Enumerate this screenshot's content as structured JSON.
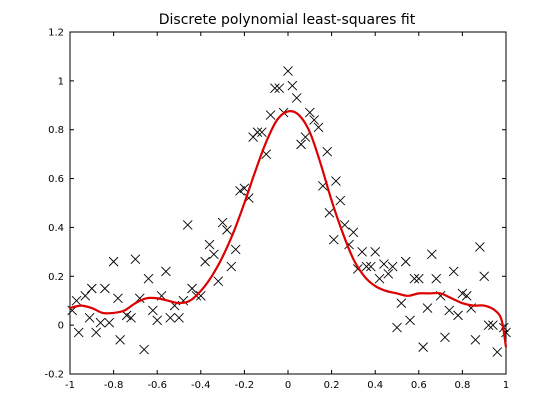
{
  "chart_data": {
    "type": "scatter",
    "title": "Discrete polynomial least-squares fit",
    "xlabel": "",
    "ylabel": "",
    "xlim": [
      -1,
      1
    ],
    "ylim": [
      -0.2,
      1.2
    ],
    "x_ticks": [
      -1,
      -0.8,
      -0.6,
      -0.4,
      -0.2,
      0,
      0.2,
      0.4,
      0.6,
      0.8,
      1
    ],
    "x_tick_labels": [
      "-1",
      "-0.8",
      "-0.6",
      "-0.4",
      "-0.2",
      "0",
      "0.2",
      "0.4",
      "0.6",
      "0.8",
      "1"
    ],
    "y_ticks": [
      -0.2,
      0,
      0.2,
      0.4,
      0.6,
      0.8,
      1,
      1.2
    ],
    "y_tick_labels": [
      "-0.2",
      "0",
      "0.2",
      "0.4",
      "0.6",
      "0.8",
      "1",
      "1.2"
    ],
    "grid": false,
    "legend": "none",
    "series": [
      {
        "kind": "scatter",
        "marker": "x",
        "color": "#000000",
        "points": [
          [
            -0.99,
            0.06
          ],
          [
            -0.97,
            0.1
          ],
          [
            -0.96,
            -0.03
          ],
          [
            -0.93,
            0.12
          ],
          [
            -0.91,
            0.03
          ],
          [
            -0.9,
            0.15
          ],
          [
            -0.88,
            -0.03
          ],
          [
            -0.86,
            0.01
          ],
          [
            -0.84,
            0.15
          ],
          [
            -0.82,
            0.01
          ],
          [
            -0.8,
            0.26
          ],
          [
            -0.78,
            0.11
          ],
          [
            -0.77,
            -0.06
          ],
          [
            -0.74,
            0.04
          ],
          [
            -0.72,
            0.03
          ],
          [
            -0.7,
            0.27
          ],
          [
            -0.68,
            0.11
          ],
          [
            -0.66,
            -0.1
          ],
          [
            -0.64,
            0.19
          ],
          [
            -0.62,
            0.06
          ],
          [
            -0.6,
            0.02
          ],
          [
            -0.58,
            0.12
          ],
          [
            -0.56,
            0.22
          ],
          [
            -0.54,
            0.03
          ],
          [
            -0.52,
            0.08
          ],
          [
            -0.5,
            0.03
          ],
          [
            -0.48,
            0.1
          ],
          [
            -0.46,
            0.41
          ],
          [
            -0.44,
            0.15
          ],
          [
            -0.42,
            0.12
          ],
          [
            -0.4,
            0.12
          ],
          [
            -0.38,
            0.26
          ],
          [
            -0.36,
            0.33
          ],
          [
            -0.34,
            0.29
          ],
          [
            -0.32,
            0.18
          ],
          [
            -0.3,
            0.42
          ],
          [
            -0.28,
            0.39
          ],
          [
            -0.26,
            0.24
          ],
          [
            -0.24,
            0.31
          ],
          [
            -0.22,
            0.55
          ],
          [
            -0.2,
            0.56
          ],
          [
            -0.18,
            0.52
          ],
          [
            -0.16,
            0.77
          ],
          [
            -0.14,
            0.79
          ],
          [
            -0.12,
            0.79
          ],
          [
            -0.1,
            0.7
          ],
          [
            -0.08,
            0.86
          ],
          [
            -0.06,
            0.97
          ],
          [
            -0.04,
            0.97
          ],
          [
            -0.02,
            0.87
          ],
          [
            0.0,
            1.04
          ],
          [
            0.02,
            0.98
          ],
          [
            0.04,
            0.93
          ],
          [
            0.06,
            0.74
          ],
          [
            0.08,
            0.77
          ],
          [
            0.1,
            0.87
          ],
          [
            0.12,
            0.84
          ],
          [
            0.14,
            0.81
          ],
          [
            0.16,
            0.57
          ],
          [
            0.18,
            0.71
          ],
          [
            0.19,
            0.46
          ],
          [
            0.21,
            0.35
          ],
          [
            0.22,
            0.59
          ],
          [
            0.24,
            0.51
          ],
          [
            0.26,
            0.41
          ],
          [
            0.28,
            0.33
          ],
          [
            0.3,
            0.38
          ],
          [
            0.32,
            0.23
          ],
          [
            0.34,
            0.3
          ],
          [
            0.36,
            0.24
          ],
          [
            0.38,
            0.24
          ],
          [
            0.4,
            0.3
          ],
          [
            0.42,
            0.19
          ],
          [
            0.44,
            0.25
          ],
          [
            0.46,
            0.21
          ],
          [
            0.48,
            0.24
          ],
          [
            0.5,
            -0.01
          ],
          [
            0.52,
            0.09
          ],
          [
            0.54,
            0.26
          ],
          [
            0.56,
            0.02
          ],
          [
            0.58,
            0.19
          ],
          [
            0.6,
            0.19
          ],
          [
            0.62,
            -0.09
          ],
          [
            0.64,
            0.07
          ],
          [
            0.66,
            0.29
          ],
          [
            0.68,
            0.19
          ],
          [
            0.7,
            0.12
          ],
          [
            0.72,
            -0.05
          ],
          [
            0.74,
            0.06
          ],
          [
            0.76,
            0.22
          ],
          [
            0.78,
            0.04
          ],
          [
            0.8,
            0.13
          ],
          [
            0.82,
            0.12
          ],
          [
            0.84,
            0.07
          ],
          [
            0.86,
            -0.06
          ],
          [
            0.88,
            0.32
          ],
          [
            0.9,
            0.2
          ],
          [
            0.92,
            0.0
          ],
          [
            0.94,
            0.0
          ],
          [
            0.96,
            -0.11
          ],
          [
            0.99,
            -0.01
          ],
          [
            1.0,
            -0.03
          ]
        ]
      },
      {
        "kind": "line",
        "color": "#dd0000",
        "points": [
          [
            -1.0,
            0.07
          ],
          [
            -0.95,
            0.08
          ],
          [
            -0.9,
            0.07
          ],
          [
            -0.85,
            0.05
          ],
          [
            -0.8,
            0.05
          ],
          [
            -0.75,
            0.06
          ],
          [
            -0.7,
            0.09
          ],
          [
            -0.65,
            0.11
          ],
          [
            -0.6,
            0.11
          ],
          [
            -0.55,
            0.1
          ],
          [
            -0.5,
            0.09
          ],
          [
            -0.45,
            0.1
          ],
          [
            -0.4,
            0.14
          ],
          [
            -0.35,
            0.2
          ],
          [
            -0.3,
            0.28
          ],
          [
            -0.25,
            0.38
          ],
          [
            -0.2,
            0.5
          ],
          [
            -0.15,
            0.63
          ],
          [
            -0.1,
            0.75
          ],
          [
            -0.05,
            0.84
          ],
          [
            0.0,
            0.875
          ],
          [
            0.05,
            0.86
          ],
          [
            0.1,
            0.79
          ],
          [
            0.15,
            0.66
          ],
          [
            0.2,
            0.51
          ],
          [
            0.25,
            0.38
          ],
          [
            0.3,
            0.27
          ],
          [
            0.35,
            0.2
          ],
          [
            0.4,
            0.16
          ],
          [
            0.45,
            0.14
          ],
          [
            0.5,
            0.13
          ],
          [
            0.55,
            0.12
          ],
          [
            0.6,
            0.13
          ],
          [
            0.65,
            0.13
          ],
          [
            0.7,
            0.13
          ],
          [
            0.75,
            0.11
          ],
          [
            0.8,
            0.09
          ],
          [
            0.85,
            0.08
          ],
          [
            0.9,
            0.08
          ],
          [
            0.95,
            0.06
          ],
          [
            0.98,
            0.02
          ],
          [
            1.0,
            -0.09
          ]
        ]
      }
    ]
  }
}
